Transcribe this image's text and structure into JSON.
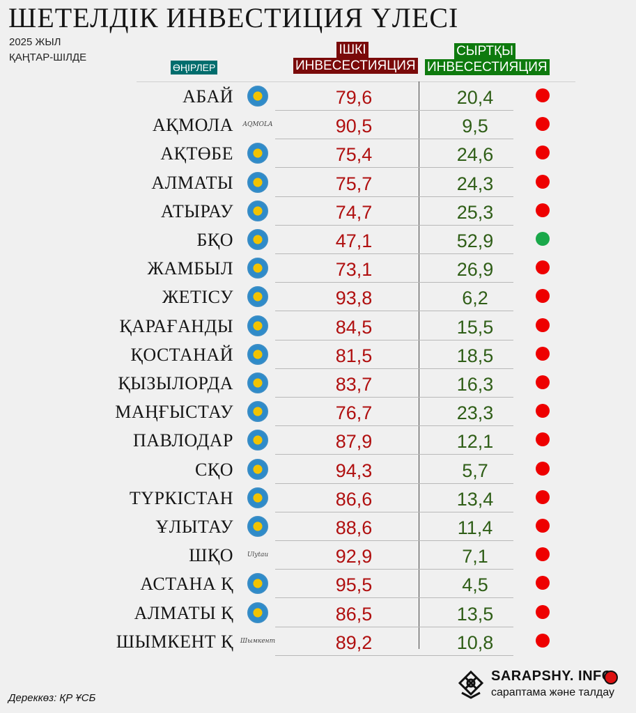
{
  "title": "ШЕТЕЛДІК ИНВЕСТИЦИЯ ҮЛЕСІ",
  "subtitle_year": "2025 ЖЫЛ",
  "subtitle_period": "ҚАҢТАР-ШІЛДЕ",
  "headers": {
    "region": "ӨҢІРЛЕР",
    "internal_line1": "ІШКІ",
    "internal_line2": "ИНВЕСЕСТИЯЦИЯ",
    "external_line1": "СЫРТҚЫ",
    "external_line2": "ИНВЕСЕСТИЯЦИЯ"
  },
  "colors": {
    "internal": "#b01010",
    "external": "#2f5e17",
    "dot_red": "#ee0000",
    "dot_green": "#1aa84a"
  },
  "chart_data": {
    "type": "table",
    "columns": [
      "ӨҢІРЛЕР",
      "ІШКІ ИНВЕСЕСТИЯЦИЯ",
      "СЫРТҚЫ ИНВЕСЕСТИЯЦИЯ"
    ],
    "rows": [
      {
        "region": "АБАЙ",
        "internal": "79,6",
        "external": "20,4",
        "status": "red"
      },
      {
        "region": "АҚМОЛА",
        "internal": "90,5",
        "external": "9,5",
        "status": "red",
        "logo_text": "AQMOLA"
      },
      {
        "region": "АҚТӨБЕ",
        "internal": "75,4",
        "external": "24,6",
        "status": "red"
      },
      {
        "region": "АЛМАТЫ",
        "internal": "75,7",
        "external": "24,3",
        "status": "red"
      },
      {
        "region": "АТЫРАУ",
        "internal": "74,7",
        "external": "25,3",
        "status": "red"
      },
      {
        "region": "БҚО",
        "internal": "47,1",
        "external": "52,9",
        "status": "green"
      },
      {
        "region": "ЖАМБЫЛ",
        "internal": "73,1",
        "external": "26,9",
        "status": "red"
      },
      {
        "region": "ЖЕТІСУ",
        "internal": "93,8",
        "external": "6,2",
        "status": "red"
      },
      {
        "region": "ҚАРАҒАНДЫ",
        "internal": "84,5",
        "external": "15,5",
        "status": "red"
      },
      {
        "region": "ҚОСТАНАЙ",
        "internal": "81,5",
        "external": "18,5",
        "status": "red"
      },
      {
        "region": "ҚЫЗЫЛОРДА",
        "internal": "83,7",
        "external": "16,3",
        "status": "red"
      },
      {
        "region": "МАҢҒЫСТАУ",
        "internal": "76,7",
        "external": "23,3",
        "status": "red"
      },
      {
        "region": "ПАВЛОДАР",
        "internal": "87,9",
        "external": "12,1",
        "status": "red"
      },
      {
        "region": "СҚО",
        "internal": "94,3",
        "external": "5,7",
        "status": "red"
      },
      {
        "region": "ТҮРКІСТАН",
        "internal": "86,6",
        "external": "13,4",
        "status": "red"
      },
      {
        "region": "ҰЛЫТАУ",
        "internal": "88,6",
        "external": "11,4",
        "status": "red"
      },
      {
        "region": "ШҚО",
        "internal": "92,9",
        "external": "7,1",
        "status": "red",
        "logo_text": "Ulytau"
      },
      {
        "region": "АСТАНА  Қ",
        "internal": "95,5",
        "external": "4,5",
        "status": "red"
      },
      {
        "region": "АЛМАТЫ Қ",
        "internal": "86,5",
        "external": "13,5",
        "status": "red"
      },
      {
        "region": "ШЫМКЕНТ Қ",
        "internal": "89,2",
        "external": "10,8",
        "status": "red",
        "logo_text": "Шымкент"
      }
    ]
  },
  "source": "Дереккөз: ҚР ҰСБ",
  "brand": {
    "name": "SARAPSHY. INFO",
    "tagline": "сараптама және талдау"
  }
}
